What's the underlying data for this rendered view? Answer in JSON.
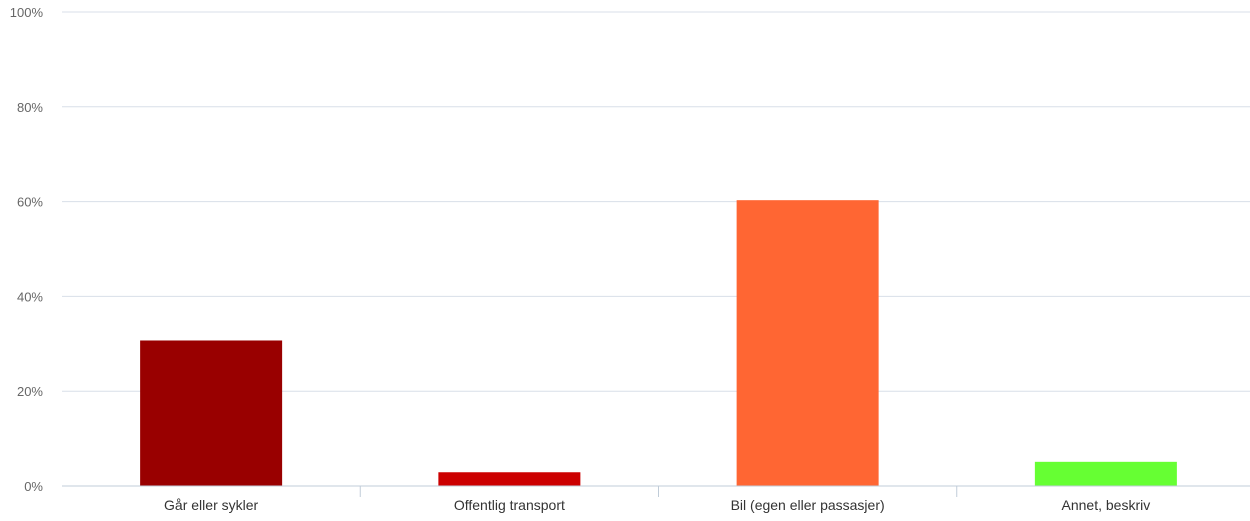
{
  "chart_data": {
    "type": "bar",
    "categories": [
      "Går eller sykler",
      "Offentlig transport",
      "Bil (egen eller passasjer)",
      "Annet, beskriv"
    ],
    "values": [
      30.7,
      2.9,
      60.3,
      5.1
    ],
    "colors": [
      "#990000",
      "#cc0000",
      "#ff6633",
      "#66ff33"
    ],
    "ylim": [
      0,
      100
    ],
    "yticks": [
      0,
      20,
      40,
      60,
      80,
      100
    ],
    "ytick_labels": [
      "0%",
      "20%",
      "40%",
      "60%",
      "80%",
      "100%"
    ],
    "grid": true,
    "title": "",
    "xlabel": "",
    "ylabel": ""
  },
  "style": {
    "grid_color": "#d8dfe8",
    "axis_color": "#c0ccd8"
  }
}
